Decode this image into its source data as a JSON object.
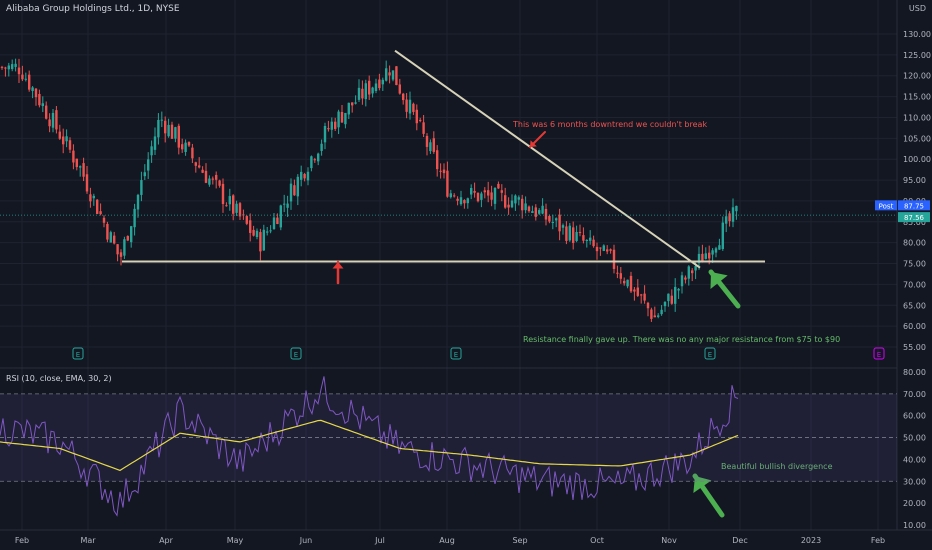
{
  "header": {
    "symbol_title": "Alibaba Group Holdings Ltd., 1D, NYSE",
    "currency": "USD"
  },
  "rsi_header": "RSI (10, close, EMA, 30, 2)",
  "price_axis": {
    "ticks": [
      "130.00",
      "125.00",
      "120.00",
      "115.00",
      "110.00",
      "105.00",
      "100.00",
      "95.00",
      "90.00",
      "85.00",
      "80.00",
      "75.00",
      "70.00",
      "65.00",
      "60.00",
      "55.00"
    ],
    "post_label": "Post",
    "post_value": "87.75",
    "last_value": "87.56"
  },
  "rsi_axis": {
    "ticks": [
      "80.00",
      "70.00",
      "60.00",
      "50.00",
      "40.00",
      "30.00",
      "20.00",
      "10.00"
    ]
  },
  "time_axis": [
    "Feb",
    "Mar",
    "Apr",
    "May",
    "Jun",
    "Jul",
    "Aug",
    "Sep",
    "Oct",
    "Nov",
    "Dec",
    "2023",
    "Feb"
  ],
  "annotations": {
    "downtrend_note": "This was 6 months downtrend we couldn't break",
    "resistance_note": "Resistance finally gave up. There was no any major resistance from $75 to $90",
    "divergence_note": "Beautiful bullish divergence"
  },
  "earnings_markers": [
    "E",
    "E",
    "E",
    "E",
    "E"
  ],
  "colors": {
    "background": "#131722",
    "up": "#26a69a",
    "down": "#ef5350",
    "line": "#d6d2b8",
    "red_arrow": "#e53935",
    "green_arrow": "#4caf50",
    "rsi_line": "#7e57c2",
    "rsi_ema": "#e5d84a",
    "grid": "#1f2330",
    "post_badge": "#2962ff",
    "last_badge": "#26a69a"
  },
  "chart_data": {
    "type": "candlestick",
    "title": "Alibaba Group Holdings Ltd., 1D, NYSE",
    "ylim": [
      55,
      130
    ],
    "rsi_ylim": [
      10,
      80
    ],
    "rsi_bands": [
      30,
      70
    ],
    "last_price": 87.56,
    "post_price": 87.75,
    "price_anchors": [
      {
        "month": "Feb",
        "price": 122
      },
      {
        "month": "Mar",
        "price": 98
      },
      {
        "month": "Mar",
        "price": 76
      },
      {
        "month": "Apr",
        "price": 110
      },
      {
        "month": "May",
        "price": 80
      },
      {
        "month": "Jun",
        "price": 108
      },
      {
        "month": "Jul",
        "price": 122
      },
      {
        "month": "Aug",
        "price": 92
      },
      {
        "month": "Sep",
        "price": 90
      },
      {
        "month": "Oct",
        "price": 76
      },
      {
        "month": "Nov",
        "price": 62
      },
      {
        "month": "Dec",
        "price": 87.56
      }
    ],
    "support_level": 75.5,
    "downtrend_line": {
      "start": {
        "month": "Jul",
        "price": 126
      },
      "end": {
        "month": "Nov",
        "price": 74
      }
    },
    "rsi_anchors": [
      55,
      48,
      20,
      62,
      38,
      72,
      45,
      38,
      30,
      28,
      40,
      70
    ],
    "rsi_ema_anchors": [
      48,
      45,
      35,
      52,
      48,
      58,
      45,
      42,
      38,
      37,
      42,
      51
    ]
  }
}
